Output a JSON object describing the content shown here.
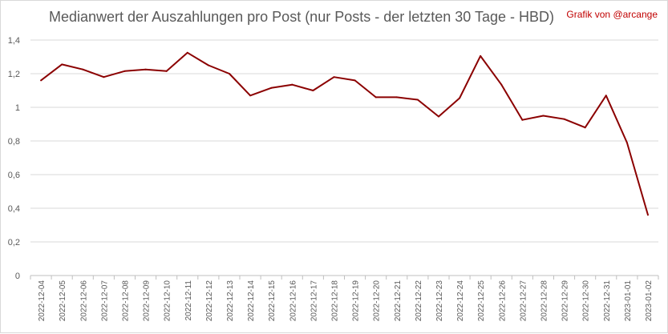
{
  "title": "Medianwert der Auszahlungen pro Post (nur Posts - der letzten 30 Tage - HBD)",
  "credit": "Grafik von @arcange",
  "colors": {
    "line": "#8b0000",
    "grid": "#d9d9d9",
    "axis": "#bfbfbf",
    "credit": "#c00000"
  },
  "chart_data": {
    "type": "line",
    "title": "Medianwert der Auszahlungen pro Post (nur Posts - der letzten 30 Tage - HBD)",
    "xlabel": "",
    "ylabel": "",
    "ylim": [
      0,
      1.4
    ],
    "yticks": [
      "0",
      "0,2",
      "0,4",
      "0,6",
      "0,8",
      "1",
      "1,2",
      "1,4"
    ],
    "ytick_values": [
      0,
      0.2,
      0.4,
      0.6,
      0.8,
      1.0,
      1.2,
      1.4
    ],
    "grid": true,
    "legend": "none",
    "categories": [
      "2022-12-04",
      "2022-12-05",
      "2022-12-06",
      "2022-12-07",
      "2022-12-08",
      "2022-12-09",
      "2022-12-10",
      "2022-12-11",
      "2022-12-12",
      "2022-12-13",
      "2022-12-14",
      "2022-12-15",
      "2022-12-16",
      "2022-12-17",
      "2022-12-18",
      "2022-12-19",
      "2022-12-20",
      "2022-12-21",
      "2022-12-22",
      "2022-12-23",
      "2022-12-24",
      "2022-12-25",
      "2022-12-26",
      "2022-12-27",
      "2022-12-28",
      "2022-12-29",
      "2022-12-30",
      "2022-12-31",
      "2023-01-01",
      "2023-01-02"
    ],
    "series": [
      {
        "values": [
          1.16,
          1.255,
          1.225,
          1.18,
          1.215,
          1.225,
          1.215,
          1.325,
          1.25,
          1.2,
          1.07,
          1.115,
          1.135,
          1.1,
          1.18,
          1.16,
          1.06,
          1.06,
          1.045,
          0.945,
          1.055,
          1.305,
          1.135,
          0.925,
          0.95,
          0.93,
          0.88,
          1.07,
          0.79,
          0.36
        ]
      }
    ]
  }
}
